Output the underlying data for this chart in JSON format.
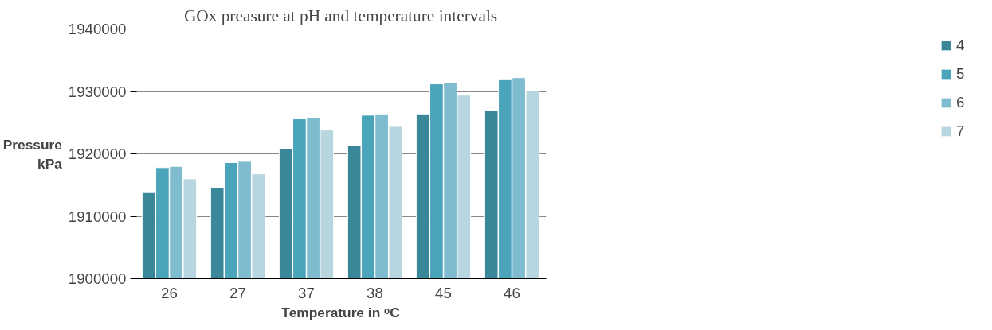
{
  "chart_data": {
    "type": "bar",
    "title": "GOx preasure at pH and temperature intervals",
    "xlabel": "Temperature in ᵒC",
    "ylabel": "Pressure kPa",
    "categories": [
      "26",
      "27",
      "37",
      "38",
      "45",
      "46"
    ],
    "series": [
      {
        "name": "4",
        "color": "#3a8799",
        "values": [
          1913800,
          1914600,
          1920800,
          1921400,
          1926400,
          1927000
        ]
      },
      {
        "name": "5",
        "color": "#4aa5bb",
        "values": [
          1917800,
          1918600,
          1925600,
          1926200,
          1931200,
          1932000
        ]
      },
      {
        "name": "6",
        "color": "#7fbcd0",
        "values": [
          1918000,
          1918800,
          1925800,
          1926400,
          1931400,
          1932200
        ]
      },
      {
        "name": "7",
        "color": "#b7d6e0",
        "values": [
          1916000,
          1916800,
          1923800,
          1924400,
          1929400,
          1930200
        ]
      }
    ],
    "ylim": [
      1900000,
      1940000
    ],
    "yticks": [
      1900000,
      1910000,
      1920000,
      1930000,
      1940000
    ],
    "grid": "y",
    "legend": "right"
  }
}
